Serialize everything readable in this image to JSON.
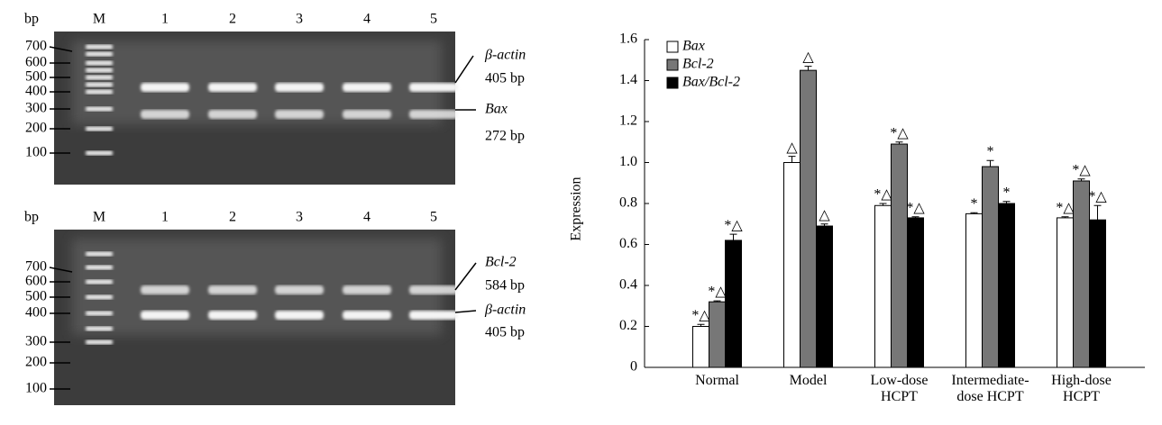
{
  "gels": [
    {
      "unit": "bp",
      "lanes": [
        "M",
        "1",
        "2",
        "3",
        "4",
        "5"
      ],
      "ladder": [
        "700",
        "600",
        "500",
        "400",
        "300",
        "200",
        "100"
      ],
      "annotations": [
        "β-actin",
        "405 bp",
        "Bax",
        "272 bp"
      ]
    },
    {
      "unit": "bp",
      "lanes": [
        "M",
        "1",
        "2",
        "3",
        "4",
        "5"
      ],
      "ladder": [
        "700",
        "600",
        "500",
        "400",
        "300",
        "200",
        "100"
      ],
      "annotations": [
        "Bcl-2",
        "584 bp",
        "β-actin",
        "405 bp"
      ]
    }
  ],
  "chart_data": {
    "type": "bar",
    "ylabel": "Expression",
    "categories": [
      "Normal",
      "Model",
      "Low-dose HCPT",
      "Intermediate-dose HCPT",
      "High-dose HCPT"
    ],
    "series": [
      {
        "name": "Bax",
        "color": "#ffffff",
        "values": [
          0.2,
          1.0,
          0.79,
          0.75,
          0.73
        ],
        "errors": [
          0.01,
          0.03,
          0.01,
          0.005,
          0.005
        ],
        "markers": [
          "*△",
          "△",
          "*△",
          "*",
          "*△"
        ]
      },
      {
        "name": "Bcl-2",
        "color": "#777777",
        "values": [
          0.32,
          1.45,
          1.09,
          0.98,
          0.91
        ],
        "errors": [
          0.005,
          0.02,
          0.01,
          0.03,
          0.01
        ],
        "markers": [
          "*△",
          "△",
          "*△",
          "*",
          "*△"
        ]
      },
      {
        "name": "Bax/Bcl-2",
        "color": "#000000",
        "values": [
          0.62,
          0.69,
          0.73,
          0.8,
          0.72
        ],
        "errors": [
          0.03,
          0.01,
          0.005,
          0.01,
          0.07
        ],
        "markers": [
          "*△",
          "△",
          "*△",
          "*",
          "*△"
        ]
      }
    ],
    "ylim": [
      0,
      1.6
    ],
    "yticks": [
      0,
      0.2,
      0.4,
      0.6,
      0.8,
      {
        "value": 1,
        "label": "1.0"
      },
      1.2,
      1.4,
      1.6
    ],
    "legend": "top-left"
  }
}
